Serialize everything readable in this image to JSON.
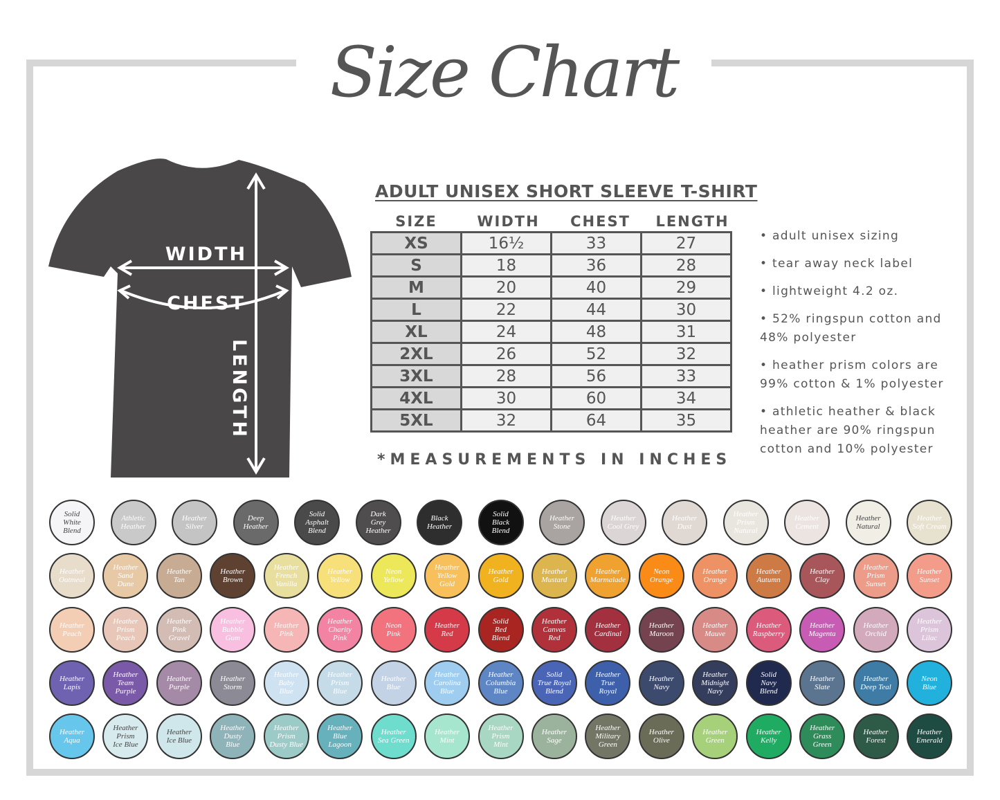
{
  "title": "Size Chart",
  "shirt": {
    "color": "#4a4748",
    "labels": {
      "width": "WIDTH",
      "chest": "CHEST",
      "length": "LENGTH"
    }
  },
  "table": {
    "title": "ADULT UNISEX SHORT SLEEVE T-SHIRT",
    "columns": [
      "SIZE",
      "WIDTH",
      "CHEST",
      "LENGTH"
    ],
    "rows": [
      [
        "XS",
        "16½",
        "33",
        "27"
      ],
      [
        "S",
        "18",
        "36",
        "28"
      ],
      [
        "M",
        "20",
        "40",
        "29"
      ],
      [
        "L",
        "22",
        "44",
        "30"
      ],
      [
        "XL",
        "24",
        "48",
        "31"
      ],
      [
        "2XL",
        "26",
        "52",
        "32"
      ],
      [
        "3XL",
        "28",
        "56",
        "33"
      ],
      [
        "4XL",
        "30",
        "60",
        "34"
      ],
      [
        "5XL",
        "32",
        "64",
        "35"
      ]
    ],
    "footnote": "*MEASUREMENTS IN INCHES"
  },
  "notes": [
    "• adult unisex sizing",
    "• tear away neck label",
    "• lightweight 4.2 oz.",
    "• 52% ringspun cotton and 48% polyester",
    "• heather prism colors are 99% cotton & 1% polyester",
    "• athletic heather & black heather are 90% ringspun cotton and 10% polyester"
  ],
  "swatches": [
    [
      {
        "label": "Solid\nWhite\nBlend",
        "color": "#f5f5f7",
        "text": "#444"
      },
      {
        "label": "Athletic\nHeather",
        "color": "#c9c9c9",
        "text": "#fff"
      },
      {
        "label": "Heather\nSilver",
        "color": "#c4c4c4",
        "text": "#fff"
      },
      {
        "label": "Deep\nHeather",
        "color": "#6a6a6a",
        "text": "#fff"
      },
      {
        "label": "Solid\nAsphalt\nBlend",
        "color": "#4a4a4a",
        "text": "#fff"
      },
      {
        "label": "Dark\nGrey\nHeather",
        "color": "#4f4d4d",
        "text": "#fff"
      },
      {
        "label": "Black\nHeather",
        "color": "#2e2e2e",
        "text": "#fff"
      },
      {
        "label": "Solid\nBlack\nBlend",
        "color": "#111",
        "text": "#fff"
      },
      {
        "label": "Heather\nStone",
        "color": "#a9a3a1",
        "text": "#fff"
      },
      {
        "label": "Heather\nCool Grey",
        "color": "#dcd5d5",
        "text": "#fff"
      },
      {
        "label": "Heather\nDust",
        "color": "#e0d9d3",
        "text": "#fff"
      },
      {
        "label": "Heather\nPrism\nNatural",
        "color": "#e9e6df",
        "text": "#fff"
      },
      {
        "label": "Heather\nCement",
        "color": "#ebe4e1",
        "text": "#fff"
      },
      {
        "label": "Heather\nNatural",
        "color": "#f1eee6",
        "text": "#444"
      },
      {
        "label": "Heather\nSoft Cream",
        "color": "#e7e1d0",
        "text": "#fff"
      }
    ],
    [
      {
        "label": "Heather\nOatmeal",
        "color": "#e8dccb",
        "text": "#fff"
      },
      {
        "label": "Heather\nSand\nDune",
        "color": "#e8c9a5",
        "text": "#fff"
      },
      {
        "label": "Heather\nTan",
        "color": "#c7ab92",
        "text": "#fff"
      },
      {
        "label": "Heather\nBrown",
        "color": "#5e4130",
        "text": "#fff"
      },
      {
        "label": "Heather\nFrench\nVanilla",
        "color": "#e8df9f",
        "text": "#fff"
      },
      {
        "label": "Heather\nYellow",
        "color": "#f7df7a",
        "text": "#fff"
      },
      {
        "label": "Neon\nYellow",
        "color": "#ede85a",
        "text": "#fff"
      },
      {
        "label": "Heather\nYellow\nGold",
        "color": "#f8c05a",
        "text": "#fff"
      },
      {
        "label": "Heather\nGold",
        "color": "#f0b21f",
        "text": "#fff"
      },
      {
        "label": "Heather\nMustard",
        "color": "#dcb54e",
        "text": "#fff"
      },
      {
        "label": "Heather\nMarmalade",
        "color": "#efa230",
        "text": "#fff"
      },
      {
        "label": "Neon\nOrange",
        "color": "#fb8b17",
        "text": "#fff"
      },
      {
        "label": "Heather\nOrange",
        "color": "#ee9266",
        "text": "#fff"
      },
      {
        "label": "Heather\nAutumn",
        "color": "#cd7a45",
        "text": "#fff"
      },
      {
        "label": "Heather\nClay",
        "color": "#a9565a",
        "text": "#fff"
      },
      {
        "label": "Heather\nPrism\nSunset",
        "color": "#ec9c88",
        "text": "#fff"
      },
      {
        "label": "Heather\nSunset",
        "color": "#f49c8a",
        "text": "#fff"
      }
    ],
    [
      {
        "label": "Heather\nPeach",
        "color": "#f4cdb5",
        "text": "#fff"
      },
      {
        "label": "Heather\nPrism\nPeach",
        "color": "#e8c7b8",
        "text": "#fff"
      },
      {
        "label": "Heather\nPink\nGravel",
        "color": "#d3bcb4",
        "text": "#fff"
      },
      {
        "label": "Heather\nBubble\nGum",
        "color": "#f8bfe0",
        "text": "#fff"
      },
      {
        "label": "Heather\nPink",
        "color": "#f5b6b5",
        "text": "#fff"
      },
      {
        "label": "Heather\nCharity\nPink",
        "color": "#f383a3",
        "text": "#fff"
      },
      {
        "label": "Neon\nPink",
        "color": "#f2727e",
        "text": "#fff"
      },
      {
        "label": "Heather\nRed",
        "color": "#d43a48",
        "text": "#fff"
      },
      {
        "label": "Solid\nRed\nBlend",
        "color": "#a92522",
        "text": "#fff"
      },
      {
        "label": "Heather\nCanvas\nRed",
        "color": "#b1313a",
        "text": "#fff"
      },
      {
        "label": "Heather\nCardinal",
        "color": "#a3303f",
        "text": "#fff"
      },
      {
        "label": "Heather\nMaroon",
        "color": "#74434f",
        "text": "#fff"
      },
      {
        "label": "Heather\nMauve",
        "color": "#d78a86",
        "text": "#fff"
      },
      {
        "label": "Heather\nRaspberry",
        "color": "#dc5a7c",
        "text": "#fff"
      },
      {
        "label": "Heather\nMagenta",
        "color": "#c85bb4",
        "text": "#fff"
      },
      {
        "label": "Heather\nOrchid",
        "color": "#d3a9bc",
        "text": "#fff"
      },
      {
        "label": "Heather\nPrism\nLilac",
        "color": "#dcc5da",
        "text": "#fff"
      }
    ],
    [
      {
        "label": "Heather\nLapis",
        "color": "#6f62b0",
        "text": "#fff"
      },
      {
        "label": "Heather\nTeam\nPurple",
        "color": "#7a5aa8",
        "text": "#fff"
      },
      {
        "label": "Heather\nPurple",
        "color": "#a48aa6",
        "text": "#fff"
      },
      {
        "label": "Heather\nStorm",
        "color": "#8c8a95",
        "text": "#fff"
      },
      {
        "label": "Heather\nBaby\nBlue",
        "color": "#cfe2f1",
        "text": "#fff"
      },
      {
        "label": "Heather\nPrism\nBlue",
        "color": "#c6dbe8",
        "text": "#fff"
      },
      {
        "label": "Heather\nBlue",
        "color": "#c4d2e6",
        "text": "#fff"
      },
      {
        "label": "Heather\nCarolina\nBlue",
        "color": "#9fcdf0",
        "text": "#fff"
      },
      {
        "label": "Heather\nColumbia\nBlue",
        "color": "#5f86c4",
        "text": "#fff"
      },
      {
        "label": "Solid\nTrue Royal\nBlend",
        "color": "#4a65b5",
        "text": "#fff"
      },
      {
        "label": "Heather\nTrue\nRoyal",
        "color": "#3e5fa9",
        "text": "#fff"
      },
      {
        "label": "Heather\nNavy",
        "color": "#3c4a6e",
        "text": "#fff"
      },
      {
        "label": "Heather\nMidnight\nNavy",
        "color": "#343e5c",
        "text": "#fff"
      },
      {
        "label": "Solid\nNavy\nBlend",
        "color": "#1f2a4e",
        "text": "#fff"
      },
      {
        "label": "Heather\nSlate",
        "color": "#5b7590",
        "text": "#fff"
      },
      {
        "label": "Heather\nDeep Teal",
        "color": "#3e7ca6",
        "text": "#fff"
      },
      {
        "label": "Neon\nBlue",
        "color": "#22b0dd",
        "text": "#fff"
      }
    ],
    [
      {
        "label": "Heather\nAqua",
        "color": "#67c6ec",
        "text": "#fff"
      },
      {
        "label": "Heather\nPrism\nIce Blue",
        "color": "#d7ebee",
        "text": "#444"
      },
      {
        "label": "Heather\nIce Blue",
        "color": "#cfe6ea",
        "text": "#444"
      },
      {
        "label": "Heather\nDusty\nBlue",
        "color": "#8eb3b9",
        "text": "#fff"
      },
      {
        "label": "Heather\nPrism\nDusty Blue",
        "color": "#9ccac6",
        "text": "#fff"
      },
      {
        "label": "Heather\nBlue\nLagoon",
        "color": "#67b1bd",
        "text": "#fff"
      },
      {
        "label": "Heather\nSea Green",
        "color": "#6fddce",
        "text": "#fff"
      },
      {
        "label": "Heather\nMint",
        "color": "#a6e6cf",
        "text": "#fff"
      },
      {
        "label": "Heather\nPrism\nMint",
        "color": "#a8d7c4",
        "text": "#fff"
      },
      {
        "label": "Heather\nSage",
        "color": "#9bb39c",
        "text": "#fff"
      },
      {
        "label": "Heather\nMilitary\nGreen",
        "color": "#737565",
        "text": "#fff"
      },
      {
        "label": "Heather\nOlive",
        "color": "#6a6c58",
        "text": "#fff"
      },
      {
        "label": "Heather\nGreen",
        "color": "#a6d07a",
        "text": "#fff"
      },
      {
        "label": "Heather\nKelly",
        "color": "#1fab62",
        "text": "#fff"
      },
      {
        "label": "Heather\nGrass\nGreen",
        "color": "#2e8c5a",
        "text": "#fff"
      },
      {
        "label": "Heather\nForest",
        "color": "#2e5a48",
        "text": "#fff"
      },
      {
        "label": "Heather\nEmerald",
        "color": "#1f4c42",
        "text": "#fff"
      }
    ]
  ]
}
